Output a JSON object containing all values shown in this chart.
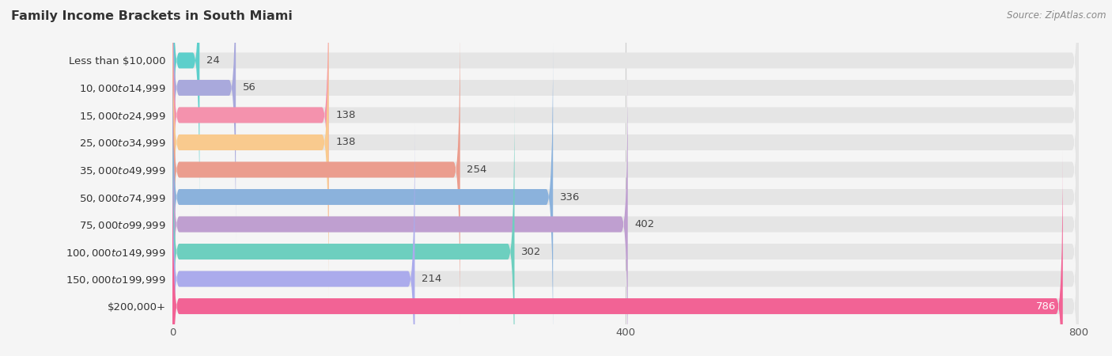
{
  "title": "Family Income Brackets in South Miami",
  "source": "Source: ZipAtlas.com",
  "categories": [
    "Less than $10,000",
    "$10,000 to $14,999",
    "$15,000 to $24,999",
    "$25,000 to $34,999",
    "$35,000 to $49,999",
    "$50,000 to $74,999",
    "$75,000 to $99,999",
    "$100,000 to $149,999",
    "$150,000 to $199,999",
    "$200,000+"
  ],
  "values": [
    24,
    56,
    138,
    138,
    254,
    336,
    402,
    302,
    214,
    786
  ],
  "bar_colors": [
    "#5DCFCB",
    "#A9A9DC",
    "#F492AD",
    "#F9CA8E",
    "#EB9D8E",
    "#8BB2DC",
    "#BF9FD0",
    "#6DCFBF",
    "#ABABEC",
    "#F26395"
  ],
  "background_color": "#f5f5f5",
  "bar_bg_color": "#e5e5e5",
  "xlim_max": 800,
  "xticks": [
    0,
    400,
    800
  ],
  "title_fontsize": 11.5,
  "label_fontsize": 9.5,
  "value_fontsize": 9.5,
  "bar_height": 0.58,
  "last_bar_label_color": "#ffffff"
}
